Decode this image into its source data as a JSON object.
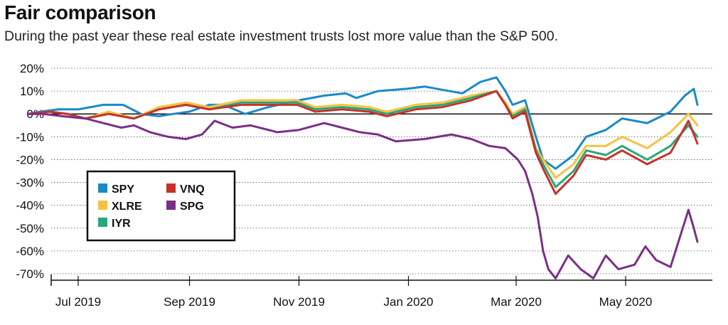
{
  "chart_data": {
    "type": "line",
    "title": "Fair comparison",
    "subtitle": "During the past year these real estate investment trusts lost more value than the S&P 500.",
    "xlabel": "",
    "ylabel": "",
    "x_range": [
      "2019-06-03",
      "2020-06-10"
    ],
    "y_range": [
      -73,
      22
    ],
    "y_ticks": [
      20,
      10,
      0,
      -10,
      -20,
      -30,
      -40,
      -50,
      -60,
      -70
    ],
    "y_tick_labels": [
      "20%",
      "10%",
      "0%",
      "-10%",
      "-20%",
      "-30%",
      "-40%",
      "-50%",
      "-60%",
      "-70%"
    ],
    "x_ticks": [
      "2019-07-01",
      "2019-09-01",
      "2019-11-01",
      "2020-01-01",
      "2020-03-01",
      "2020-05-01"
    ],
    "x_tick_labels": [
      "Jul 2019",
      "Sep 2019",
      "Nov 2019",
      "Jan 2020",
      "Mar 2020",
      "May 2020"
    ],
    "grid": "horizontal dotted",
    "legend_position": "left-middle",
    "series": [
      {
        "name": "SPY",
        "color": "#1a8ac6",
        "points": [
          [
            "2019-06-03",
            0
          ],
          [
            "2019-06-10",
            1
          ],
          [
            "2019-06-20",
            2
          ],
          [
            "2019-07-01",
            2
          ],
          [
            "2019-07-15",
            4
          ],
          [
            "2019-07-26",
            4
          ],
          [
            "2019-08-05",
            0
          ],
          [
            "2019-08-15",
            -1
          ],
          [
            "2019-08-23",
            0
          ],
          [
            "2019-09-01",
            1
          ],
          [
            "2019-09-12",
            4
          ],
          [
            "2019-09-20",
            4
          ],
          [
            "2019-10-02",
            0
          ],
          [
            "2019-10-15",
            3
          ],
          [
            "2019-11-01",
            6
          ],
          [
            "2019-11-15",
            8
          ],
          [
            "2019-11-27",
            9
          ],
          [
            "2019-12-03",
            7
          ],
          [
            "2019-12-15",
            10
          ],
          [
            "2019-12-31",
            11
          ],
          [
            "2020-01-10",
            12
          ],
          [
            "2020-01-31",
            9
          ],
          [
            "2020-02-10",
            14
          ],
          [
            "2020-02-19",
            16
          ],
          [
            "2020-02-24",
            10
          ],
          [
            "2020-02-28",
            4
          ],
          [
            "2020-03-06",
            6
          ],
          [
            "2020-03-12",
            -10
          ],
          [
            "2020-03-16",
            -20
          ],
          [
            "2020-03-23",
            -24
          ],
          [
            "2020-04-02",
            -18
          ],
          [
            "2020-04-09",
            -10
          ],
          [
            "2020-04-20",
            -7
          ],
          [
            "2020-04-29",
            -2
          ],
          [
            "2020-05-13",
            -4
          ],
          [
            "2020-05-26",
            1
          ],
          [
            "2020-06-03",
            8
          ],
          [
            "2020-06-08",
            11
          ],
          [
            "2020-06-10",
            4
          ]
        ]
      },
      {
        "name": "XLRE",
        "color": "#f5c242",
        "points": [
          [
            "2019-06-03",
            0
          ],
          [
            "2019-06-15",
            1
          ],
          [
            "2019-06-25",
            0
          ],
          [
            "2019-07-05",
            -2
          ],
          [
            "2019-07-18",
            1
          ],
          [
            "2019-08-01",
            -2
          ],
          [
            "2019-08-15",
            3
          ],
          [
            "2019-08-30",
            5
          ],
          [
            "2019-09-12",
            3
          ],
          [
            "2019-09-30",
            6
          ],
          [
            "2019-10-15",
            6
          ],
          [
            "2019-10-31",
            6
          ],
          [
            "2019-11-10",
            3
          ],
          [
            "2019-11-25",
            4
          ],
          [
            "2019-12-10",
            3
          ],
          [
            "2019-12-20",
            1
          ],
          [
            "2020-01-05",
            4
          ],
          [
            "2020-01-20",
            5
          ],
          [
            "2020-02-05",
            8
          ],
          [
            "2020-02-19",
            10
          ],
          [
            "2020-02-24",
            5
          ],
          [
            "2020-02-28",
            0
          ],
          [
            "2020-03-06",
            3
          ],
          [
            "2020-03-12",
            -15
          ],
          [
            "2020-03-16",
            -20
          ],
          [
            "2020-03-23",
            -28
          ],
          [
            "2020-04-02",
            -22
          ],
          [
            "2020-04-09",
            -14
          ],
          [
            "2020-04-20",
            -14
          ],
          [
            "2020-04-29",
            -10
          ],
          [
            "2020-05-13",
            -15
          ],
          [
            "2020-05-26",
            -8
          ],
          [
            "2020-06-05",
            0
          ],
          [
            "2020-06-10",
            -5
          ]
        ]
      },
      {
        "name": "IYR",
        "color": "#27a878",
        "points": [
          [
            "2019-06-03",
            0
          ],
          [
            "2019-06-15",
            1
          ],
          [
            "2019-06-25",
            0
          ],
          [
            "2019-07-05",
            -2
          ],
          [
            "2019-07-18",
            0
          ],
          [
            "2019-08-01",
            -2
          ],
          [
            "2019-08-15",
            2
          ],
          [
            "2019-08-30",
            4
          ],
          [
            "2019-09-12",
            2
          ],
          [
            "2019-09-30",
            5
          ],
          [
            "2019-10-15",
            5
          ],
          [
            "2019-10-31",
            5
          ],
          [
            "2019-11-10",
            2
          ],
          [
            "2019-11-25",
            3
          ],
          [
            "2019-12-10",
            2
          ],
          [
            "2019-12-20",
            0
          ],
          [
            "2020-01-05",
            3
          ],
          [
            "2020-01-20",
            4
          ],
          [
            "2020-02-05",
            7
          ],
          [
            "2020-02-19",
            10
          ],
          [
            "2020-02-24",
            4
          ],
          [
            "2020-02-28",
            -1
          ],
          [
            "2020-03-06",
            2
          ],
          [
            "2020-03-12",
            -16
          ],
          [
            "2020-03-16",
            -22
          ],
          [
            "2020-03-23",
            -32
          ],
          [
            "2020-04-02",
            -25
          ],
          [
            "2020-04-09",
            -16
          ],
          [
            "2020-04-20",
            -18
          ],
          [
            "2020-04-29",
            -14
          ],
          [
            "2020-05-13",
            -20
          ],
          [
            "2020-05-26",
            -14
          ],
          [
            "2020-06-05",
            -5
          ],
          [
            "2020-06-10",
            -10
          ]
        ]
      },
      {
        "name": "VNQ",
        "color": "#c8312a",
        "points": [
          [
            "2019-06-03",
            0
          ],
          [
            "2019-06-15",
            1
          ],
          [
            "2019-06-25",
            0
          ],
          [
            "2019-07-05",
            -2
          ],
          [
            "2019-07-18",
            0
          ],
          [
            "2019-08-01",
            -2
          ],
          [
            "2019-08-15",
            2
          ],
          [
            "2019-08-30",
            4
          ],
          [
            "2019-09-12",
            2
          ],
          [
            "2019-09-30",
            4
          ],
          [
            "2019-10-15",
            4
          ],
          [
            "2019-10-31",
            4
          ],
          [
            "2019-11-10",
            1
          ],
          [
            "2019-11-25",
            2
          ],
          [
            "2019-12-10",
            1
          ],
          [
            "2019-12-20",
            -1
          ],
          [
            "2020-01-05",
            2
          ],
          [
            "2020-01-20",
            3
          ],
          [
            "2020-02-05",
            6
          ],
          [
            "2020-02-19",
            10
          ],
          [
            "2020-02-24",
            4
          ],
          [
            "2020-02-28",
            -2
          ],
          [
            "2020-03-06",
            1
          ],
          [
            "2020-03-12",
            -17
          ],
          [
            "2020-03-16",
            -24
          ],
          [
            "2020-03-23",
            -35
          ],
          [
            "2020-04-02",
            -27
          ],
          [
            "2020-04-09",
            -18
          ],
          [
            "2020-04-20",
            -20
          ],
          [
            "2020-04-29",
            -16
          ],
          [
            "2020-05-13",
            -22
          ],
          [
            "2020-05-26",
            -17
          ],
          [
            "2020-06-05",
            -3
          ],
          [
            "2020-06-10",
            -13
          ]
        ]
      },
      {
        "name": "SPG",
        "color": "#7a2f87",
        "points": [
          [
            "2019-06-03",
            0
          ],
          [
            "2019-06-12",
            0
          ],
          [
            "2019-06-22",
            -1
          ],
          [
            "2019-07-05",
            -2
          ],
          [
            "2019-07-15",
            -4
          ],
          [
            "2019-07-25",
            -6
          ],
          [
            "2019-08-01",
            -5
          ],
          [
            "2019-08-10",
            -8
          ],
          [
            "2019-08-20",
            -10
          ],
          [
            "2019-08-30",
            -11
          ],
          [
            "2019-09-08",
            -9
          ],
          [
            "2019-09-15",
            -3
          ],
          [
            "2019-09-25",
            -6
          ],
          [
            "2019-10-05",
            -5
          ],
          [
            "2019-10-20",
            -8
          ],
          [
            "2019-11-01",
            -7
          ],
          [
            "2019-11-15",
            -4
          ],
          [
            "2019-11-25",
            -6
          ],
          [
            "2019-12-05",
            -8
          ],
          [
            "2019-12-15",
            -9
          ],
          [
            "2019-12-25",
            -12
          ],
          [
            "2020-01-10",
            -11
          ],
          [
            "2020-01-25",
            -9
          ],
          [
            "2020-02-05",
            -11
          ],
          [
            "2020-02-15",
            -14
          ],
          [
            "2020-02-24",
            -15
          ],
          [
            "2020-03-02",
            -20
          ],
          [
            "2020-03-06",
            -25
          ],
          [
            "2020-03-10",
            -35
          ],
          [
            "2020-03-13",
            -45
          ],
          [
            "2020-03-16",
            -60
          ],
          [
            "2020-03-19",
            -68
          ],
          [
            "2020-03-23",
            -72
          ],
          [
            "2020-03-30",
            -62
          ],
          [
            "2020-04-06",
            -68
          ],
          [
            "2020-04-13",
            -72
          ],
          [
            "2020-04-20",
            -62
          ],
          [
            "2020-04-27",
            -68
          ],
          [
            "2020-05-06",
            -66
          ],
          [
            "2020-05-12",
            -58
          ],
          [
            "2020-05-18",
            -64
          ],
          [
            "2020-05-26",
            -67
          ],
          [
            "2020-06-01",
            -52
          ],
          [
            "2020-06-05",
            -42
          ],
          [
            "2020-06-08",
            -50
          ],
          [
            "2020-06-10",
            -56
          ]
        ]
      }
    ]
  },
  "legend": {
    "items": [
      {
        "name": "SPY",
        "color": "#1a8ac6"
      },
      {
        "name": "XLRE",
        "color": "#f5c242"
      },
      {
        "name": "IYR",
        "color": "#27a878"
      },
      {
        "name": "VNQ",
        "color": "#c8312a"
      },
      {
        "name": "SPG",
        "color": "#7a2f87"
      }
    ]
  }
}
